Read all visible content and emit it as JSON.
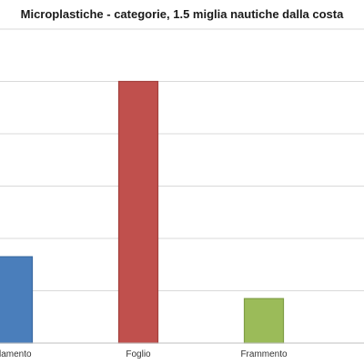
{
  "chart_data": {
    "type": "bar",
    "title": "Microplastiche - categorie, 1.5 miglia nautiche dalla costa",
    "categories": [
      "Filamento",
      "Foglio",
      "Frammento",
      ""
    ],
    "visible_category_labels": [
      "lamento",
      "Foglio",
      "Frammento"
    ],
    "values": [
      33,
      100,
      17,
      0
    ],
    "ylim": [
      0,
      120
    ],
    "grid": true,
    "legend": "none",
    "colors": [
      "#4a7ebb",
      "#c0504d",
      "#9bbb59",
      "#8064a2"
    ],
    "border_colors": [
      "#3a6aa3",
      "#a33f3c",
      "#7f9e45",
      "#6a5188"
    ]
  }
}
